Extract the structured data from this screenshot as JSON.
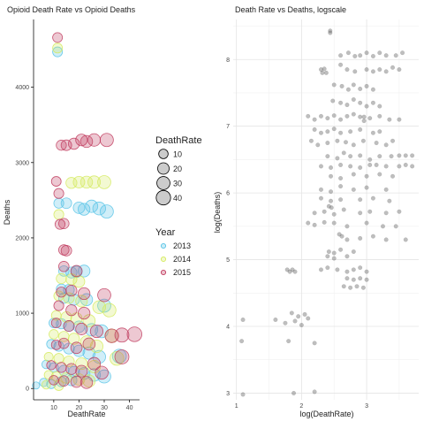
{
  "left": {
    "title": "Opioid Death Rate vs Opioid Deaths",
    "xlabel": "DeathRate",
    "ylabel": "Deaths",
    "xticks": [
      "10",
      "20",
      "30",
      "40"
    ],
    "yticks": [
      "0",
      "1000",
      "2000",
      "3000",
      "4000"
    ]
  },
  "legend": {
    "size_title": "DeathRate",
    "size_items": [
      "10",
      "20",
      "30",
      "40"
    ],
    "year_title": "Year",
    "year_items": [
      "2013",
      "2014",
      "2015"
    ]
  },
  "right": {
    "title": "Death Rate vs Deaths, logscale",
    "xlabel": "log(DeathRate)",
    "ylabel": "log(Deaths)",
    "xticks": [
      "1",
      "2",
      "3"
    ],
    "yticks": [
      "3",
      "4",
      "5",
      "6",
      "7",
      "8"
    ]
  },
  "colors": {
    "y2013": "#56c3e6",
    "y2014": "#d4ea5c",
    "y2015": "#c0395d",
    "log_point": "#555555"
  },
  "chart_data": [
    {
      "type": "scatter",
      "title": "Opioid Death Rate vs Opioid Deaths",
      "xlabel": "DeathRate",
      "ylabel": "Deaths",
      "xlim": [
        2,
        44
      ],
      "ylim": [
        -150,
        4900
      ],
      "size_by": "DeathRate",
      "color_by": "Year",
      "series": [
        {
          "name": "2013",
          "points": [
            [
              11.5,
              4470
            ],
            [
              12,
              2460
            ],
            [
              15,
              2460
            ],
            [
              20,
              2400
            ],
            [
              22,
              2380
            ],
            [
              25,
              2420
            ],
            [
              28,
              2390
            ],
            [
              31,
              2350
            ],
            [
              14,
              1560
            ],
            [
              17,
              1540
            ],
            [
              19,
              1550
            ],
            [
              22,
              1560
            ],
            [
              13,
              1320
            ],
            [
              16,
              1310
            ],
            [
              14,
              1200
            ],
            [
              18,
              1180
            ],
            [
              23,
              1180
            ],
            [
              30,
              1100
            ],
            [
              10,
              870
            ],
            [
              13,
              860
            ],
            [
              16,
              830
            ],
            [
              20,
              820
            ],
            [
              25,
              780
            ],
            [
              29,
              760
            ],
            [
              9,
              590
            ],
            [
              12,
              560
            ],
            [
              16,
              530
            ],
            [
              20,
              500
            ],
            [
              24,
              470
            ],
            [
              28,
              420
            ],
            [
              7,
              320
            ],
            [
              10,
              280
            ],
            [
              14,
              240
            ],
            [
              18,
              220
            ],
            [
              22,
              200
            ],
            [
              26,
              180
            ],
            [
              30,
              160
            ],
            [
              6,
              80
            ],
            [
              9,
              60
            ],
            [
              13,
              90
            ],
            [
              17,
              110
            ],
            [
              3,
              40
            ],
            [
              36,
              430
            ]
          ]
        },
        {
          "name": "2014",
          "points": [
            [
              11.5,
              4520
            ],
            [
              12,
              2310
            ],
            [
              17,
              2730
            ],
            [
              20,
              2740
            ],
            [
              23,
              2740
            ],
            [
              26,
              2740
            ],
            [
              30,
              2740
            ],
            [
              13,
              1460
            ],
            [
              17,
              1450
            ],
            [
              20,
              1420
            ],
            [
              12,
              1230
            ],
            [
              16,
              1200
            ],
            [
              21,
              1160
            ],
            [
              28,
              1080
            ],
            [
              32,
              1040
            ],
            [
              11,
              970
            ],
            [
              15,
              950
            ],
            [
              19,
              930
            ],
            [
              24,
              900
            ],
            [
              10,
              720
            ],
            [
              14,
              690
            ],
            [
              18,
              660
            ],
            [
              23,
              620
            ],
            [
              27,
              560
            ],
            [
              8,
              420
            ],
            [
              12,
              400
            ],
            [
              16,
              360
            ],
            [
              21,
              330
            ],
            [
              26,
              290
            ],
            [
              8,
              180
            ],
            [
              11,
              160
            ],
            [
              15,
              140
            ],
            [
              20,
              120
            ],
            [
              24,
              100
            ],
            [
              7,
              50
            ],
            [
              12,
              40
            ],
            [
              33,
              700
            ],
            [
              35,
              400
            ]
          ]
        },
        {
          "name": "2015",
          "points": [
            [
              11.5,
              4660
            ],
            [
              13,
              3230
            ],
            [
              15,
              3230
            ],
            [
              18,
              3250
            ],
            [
              21,
              3300
            ],
            [
              23,
              3280
            ],
            [
              26,
              3300
            ],
            [
              31,
              3300
            ],
            [
              11,
              2750
            ],
            [
              12,
              2590
            ],
            [
              12.5,
              2180
            ],
            [
              14,
              2190
            ],
            [
              14,
              1840
            ],
            [
              15,
              1830
            ],
            [
              14,
              1620
            ],
            [
              19,
              1560
            ],
            [
              13,
              1280
            ],
            [
              17,
              1300
            ],
            [
              22,
              1260
            ],
            [
              30,
              1240
            ],
            [
              12,
              1100
            ],
            [
              17,
              1040
            ],
            [
              22,
              1000
            ],
            [
              11,
              870
            ],
            [
              16,
              830
            ],
            [
              21,
              790
            ],
            [
              27,
              760
            ],
            [
              11,
              580
            ],
            [
              14,
              600
            ],
            [
              19,
              540
            ],
            [
              24,
              590
            ],
            [
              33,
              700
            ],
            [
              37,
              710
            ],
            [
              42,
              720
            ],
            [
              9,
              310
            ],
            [
              13,
              280
            ],
            [
              17,
              260
            ],
            [
              21,
              230
            ],
            [
              26,
              330
            ],
            [
              29,
              210
            ],
            [
              10,
              110
            ],
            [
              14,
              100
            ],
            [
              19,
              90
            ],
            [
              23,
              80
            ],
            [
              37,
              420
            ]
          ]
        }
      ]
    },
    {
      "type": "scatter",
      "title": "Death Rate vs Deaths, logscale",
      "xlabel": "log(DeathRate)",
      "ylabel": "log(Deaths)",
      "xlim": [
        0.95,
        3.8
      ],
      "ylim": [
        2.9,
        8.6
      ],
      "points": [
        [
          2.44,
          8.43
        ],
        [
          2.44,
          8.4
        ],
        [
          2.3,
          7.85
        ],
        [
          2.32,
          7.8
        ],
        [
          2.35,
          7.86
        ],
        [
          2.38,
          7.8
        ],
        [
          2.6,
          8.06
        ],
        [
          2.72,
          8.1
        ],
        [
          2.82,
          8.05
        ],
        [
          2.9,
          8.06
        ],
        [
          3.0,
          8.1
        ],
        [
          3.1,
          8.05
        ],
        [
          3.2,
          8.1
        ],
        [
          3.3,
          8.06
        ],
        [
          3.45,
          8.06
        ],
        [
          3.55,
          8.1
        ],
        [
          2.6,
          7.92
        ],
        [
          2.7,
          7.85
        ],
        [
          2.82,
          7.82
        ],
        [
          3.0,
          7.85
        ],
        [
          3.1,
          7.82
        ],
        [
          3.2,
          7.85
        ],
        [
          3.3,
          7.82
        ],
        [
          3.4,
          7.88
        ],
        [
          3.5,
          7.85
        ],
        [
          2.5,
          7.62
        ],
        [
          2.62,
          7.6
        ],
        [
          2.72,
          7.55
        ],
        [
          2.8,
          7.62
        ],
        [
          2.9,
          7.56
        ],
        [
          3.0,
          7.6
        ],
        [
          3.1,
          7.55
        ],
        [
          2.48,
          7.38
        ],
        [
          2.6,
          7.35
        ],
        [
          2.7,
          7.32
        ],
        [
          2.8,
          7.4
        ],
        [
          2.9,
          7.35
        ],
        [
          3.0,
          7.3
        ],
        [
          3.1,
          7.35
        ],
        [
          3.2,
          7.3
        ],
        [
          2.1,
          7.15
        ],
        [
          2.2,
          7.1
        ],
        [
          2.3,
          7.15
        ],
        [
          2.4,
          7.12
        ],
        [
          2.5,
          7.16
        ],
        [
          2.6,
          7.1
        ],
        [
          2.7,
          7.15
        ],
        [
          2.8,
          7.18
        ],
        [
          2.9,
          7.14
        ],
        [
          2.96,
          7.14
        ],
        [
          2.96,
          7.08
        ],
        [
          3.05,
          7.12
        ],
        [
          3.2,
          7.15
        ],
        [
          3.35,
          7.1
        ],
        [
          3.5,
          7.1
        ],
        [
          2.2,
          6.95
        ],
        [
          2.3,
          6.9
        ],
        [
          2.4,
          6.92
        ],
        [
          2.5,
          6.96
        ],
        [
          2.6,
          6.9
        ],
        [
          2.75,
          6.92
        ],
        [
          2.9,
          6.95
        ],
        [
          3.1,
          6.9
        ],
        [
          3.2,
          6.92
        ],
        [
          2.15,
          6.78
        ],
        [
          2.25,
          6.72
        ],
        [
          2.4,
          6.75
        ],
        [
          2.55,
          6.78
        ],
        [
          2.68,
          6.76
        ],
        [
          2.8,
          6.72
        ],
        [
          2.95,
          6.78
        ],
        [
          3.15,
          6.75
        ],
        [
          3.3,
          6.72
        ],
        [
          3.4,
          6.78
        ],
        [
          2.4,
          6.55
        ],
        [
          2.55,
          6.52
        ],
        [
          2.65,
          6.6
        ],
        [
          2.75,
          6.55
        ],
        [
          2.9,
          6.56
        ],
        [
          3.05,
          6.5
        ],
        [
          3.2,
          6.55
        ],
        [
          3.38,
          6.55
        ],
        [
          3.5,
          6.56
        ],
        [
          3.6,
          6.56
        ],
        [
          3.7,
          6.56
        ],
        [
          2.3,
          6.4
        ],
        [
          2.45,
          6.38
        ],
        [
          2.6,
          6.42
        ],
        [
          2.75,
          6.4
        ],
        [
          2.9,
          6.38
        ],
        [
          3.05,
          6.42
        ],
        [
          3.15,
          6.42
        ],
        [
          3.3,
          6.4
        ],
        [
          3.5,
          6.4
        ],
        [
          3.6,
          6.42
        ],
        [
          3.7,
          6.4
        ],
        [
          2.45,
          6.25
        ],
        [
          2.6,
          6.22
        ],
        [
          2.8,
          6.28
        ],
        [
          3.0,
          6.25
        ],
        [
          3.2,
          6.28
        ],
        [
          3.4,
          6.25
        ],
        [
          2.3,
          6.05
        ],
        [
          2.45,
          6.02
        ],
        [
          2.6,
          6.1
        ],
        [
          2.8,
          6.05
        ],
        [
          3.0,
          6.08
        ],
        [
          3.3,
          6.05
        ],
        [
          2.3,
          5.92
        ],
        [
          2.45,
          5.88
        ],
        [
          2.6,
          5.9
        ],
        [
          2.9,
          5.9
        ],
        [
          3.1,
          5.92
        ],
        [
          3.35,
          5.88
        ],
        [
          2.42,
          5.8
        ],
        [
          2.46,
          5.78
        ],
        [
          2.2,
          5.7
        ],
        [
          2.35,
          5.72
        ],
        [
          2.5,
          5.68
        ],
        [
          2.65,
          5.75
        ],
        [
          2.9,
          5.7
        ],
        [
          3.05,
          5.72
        ],
        [
          3.3,
          5.7
        ],
        [
          3.5,
          5.72
        ],
        [
          2.1,
          5.55
        ],
        [
          2.2,
          5.52
        ],
        [
          2.35,
          5.56
        ],
        [
          2.5,
          5.55
        ],
        [
          2.7,
          5.5
        ],
        [
          3.0,
          5.55
        ],
        [
          3.25,
          5.5
        ],
        [
          3.45,
          5.5
        ],
        [
          2.58,
          5.38
        ],
        [
          2.62,
          5.35
        ],
        [
          2.7,
          5.3
        ],
        [
          2.9,
          5.32
        ],
        [
          3.1,
          5.35
        ],
        [
          3.3,
          5.3
        ],
        [
          3.6,
          5.3
        ],
        [
          2.42,
          5.12
        ],
        [
          2.5,
          5.1
        ],
        [
          2.6,
          5.15
        ],
        [
          2.8,
          5.12
        ],
        [
          2.4,
          5.05
        ],
        [
          2.5,
          5.02
        ],
        [
          2.7,
          5.05
        ],
        [
          2.3,
          4.85
        ],
        [
          2.4,
          4.88
        ],
        [
          2.55,
          4.85
        ],
        [
          2.7,
          4.82
        ],
        [
          2.8,
          4.85
        ],
        [
          2.9,
          4.88
        ],
        [
          3.0,
          4.82
        ],
        [
          1.78,
          4.85
        ],
        [
          1.82,
          4.82
        ],
        [
          1.86,
          4.85
        ],
        [
          1.9,
          4.82
        ],
        [
          2.7,
          4.72
        ],
        [
          2.8,
          4.7
        ],
        [
          2.9,
          4.72
        ],
        [
          3.0,
          4.7
        ],
        [
          2.65,
          4.6
        ],
        [
          2.75,
          4.58
        ],
        [
          2.85,
          4.6
        ],
        [
          2.95,
          4.58
        ],
        [
          1.85,
          4.2
        ],
        [
          1.95,
          4.15
        ],
        [
          2.05,
          4.18
        ],
        [
          2.1,
          4.12
        ],
        [
          1.6,
          4.1
        ],
        [
          1.75,
          4.05
        ],
        [
          1.9,
          4.08
        ],
        [
          2.0,
          4.02
        ],
        [
          1.1,
          4.1
        ],
        [
          1.08,
          3.78
        ],
        [
          1.8,
          3.78
        ],
        [
          2.2,
          3.75
        ],
        [
          1.1,
          2.98
        ],
        [
          1.88,
          3.0
        ],
        [
          2.2,
          3.02
        ]
      ]
    }
  ]
}
